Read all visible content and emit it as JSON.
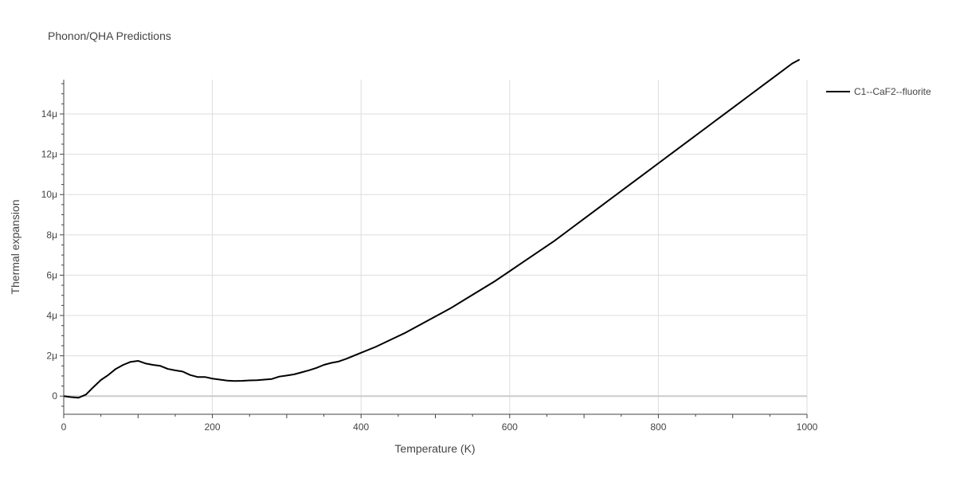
{
  "chart_data": {
    "type": "line",
    "title": "Phonon/QHA Predictions",
    "xlabel": "Temperature (K)",
    "ylabel": "Thermal expansion",
    "xlim": [
      0,
      1000
    ],
    "ylim": [
      -0.9,
      15.7
    ],
    "x_ticks": [
      0,
      200,
      400,
      600,
      800,
      1000
    ],
    "x_tick_labels": [
      "0",
      "200",
      "400",
      "600",
      "800",
      "1000"
    ],
    "y_ticks": [
      0,
      2,
      4,
      6,
      8,
      10,
      12,
      14
    ],
    "y_tick_labels": [
      "0",
      "2μ",
      "4μ",
      "6μ",
      "8μ",
      "10μ",
      "12μ",
      "14μ"
    ],
    "y_unit_scale": "1e-6",
    "grid": true,
    "legend_position": "top-right",
    "series": [
      {
        "name": "C1--CaF2--fluorite",
        "color": "#000000",
        "x": [
          0,
          10,
          20,
          30,
          40,
          50,
          60,
          70,
          80,
          90,
          100,
          110,
          120,
          130,
          140,
          150,
          160,
          170,
          180,
          190,
          200,
          210,
          220,
          230,
          240,
          250,
          260,
          270,
          280,
          290,
          300,
          310,
          320,
          330,
          340,
          350,
          360,
          370,
          380,
          400,
          420,
          440,
          460,
          480,
          500,
          520,
          540,
          560,
          580,
          600,
          620,
          640,
          660,
          680,
          700,
          720,
          740,
          760,
          780,
          800,
          820,
          840,
          860,
          880,
          900,
          920,
          940,
          960,
          980,
          990
        ],
        "y": [
          0.0,
          -0.05,
          -0.08,
          0.08,
          0.45,
          0.8,
          1.05,
          1.35,
          1.55,
          1.7,
          1.75,
          1.62,
          1.55,
          1.5,
          1.35,
          1.28,
          1.22,
          1.05,
          0.95,
          0.95,
          0.87,
          0.82,
          0.77,
          0.75,
          0.76,
          0.78,
          0.79,
          0.82,
          0.85,
          0.97,
          1.02,
          1.08,
          1.18,
          1.28,
          1.4,
          1.55,
          1.65,
          1.72,
          1.85,
          2.15,
          2.45,
          2.8,
          3.15,
          3.55,
          3.95,
          4.35,
          4.8,
          5.25,
          5.7,
          6.2,
          6.7,
          7.2,
          7.7,
          8.25,
          8.8,
          9.35,
          9.9,
          10.45,
          11.0,
          11.55,
          12.1,
          12.65,
          13.2,
          13.75,
          14.3,
          14.85,
          15.4,
          15.95,
          16.5,
          16.7
        ]
      }
    ]
  }
}
